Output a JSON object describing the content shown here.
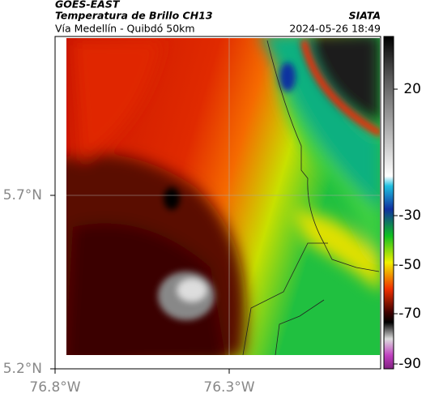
{
  "header": {
    "product": "GOES-EAST",
    "title": "Temperatura de Brillo CH13",
    "subtitle": "Vía Medellín - Quibdó 50km",
    "source": "SIATA",
    "datetime": "2024-05-26 18:49"
  },
  "axes": {
    "y_labels": [
      "5.7°N",
      "5.2°N"
    ],
    "x_labels": [
      "76.8°W",
      "76.3°W"
    ]
  },
  "colorbar": {
    "labels": [
      "20",
      "-30",
      "-50",
      "-70",
      "-90"
    ]
  }
}
